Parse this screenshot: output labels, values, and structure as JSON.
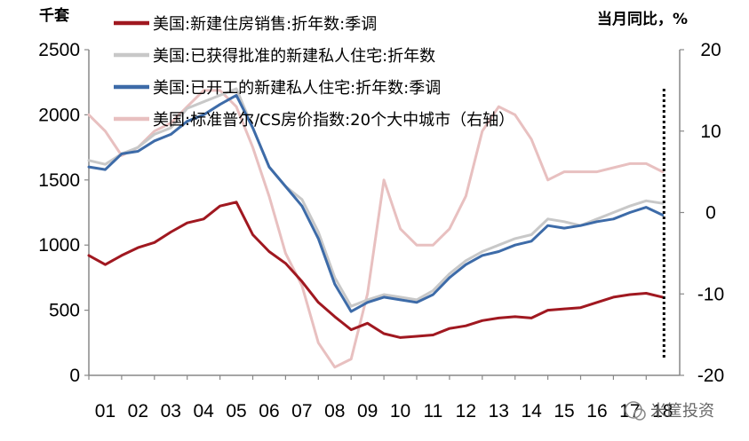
{
  "chart_data": {
    "type": "line",
    "left_unit": "千套",
    "right_unit": "当月同比，%",
    "x_ticks": [
      "01",
      "02",
      "03",
      "04",
      "05",
      "06",
      "07",
      "08",
      "09",
      "10",
      "11",
      "12",
      "13",
      "14",
      "15",
      "16",
      "17",
      "18"
    ],
    "left_axis": {
      "ylim": [
        0,
        2500
      ],
      "ticks": [
        "0",
        "500",
        "1000",
        "1500",
        "2000",
        "2500"
      ]
    },
    "right_axis": {
      "ylim": [
        -20,
        20
      ],
      "ticks": [
        "-20",
        "-10",
        "0",
        "10",
        "20"
      ]
    },
    "grid": false,
    "legend_position": "top-left",
    "x_values": [
      2001,
      2001.5,
      2002,
      2002.5,
      2003,
      2003.5,
      2004,
      2004.5,
      2005,
      2005.5,
      2006,
      2006.5,
      2007,
      2007.5,
      2008,
      2008.5,
      2009,
      2009.5,
      2010,
      2010.5,
      2011,
      2011.5,
      2012,
      2012.5,
      2013,
      2013.5,
      2014,
      2014.5,
      2015,
      2015.5,
      2016,
      2016.5,
      2017,
      2017.5,
      2018,
      2018.5
    ],
    "series": [
      {
        "name": "美国:新建住房销售:折年数:季调",
        "axis": "left",
        "color": "#A01820",
        "width": 3,
        "values": [
          920,
          850,
          920,
          980,
          1020,
          1100,
          1170,
          1200,
          1300,
          1330,
          1080,
          950,
          860,
          720,
          560,
          450,
          350,
          400,
          320,
          290,
          300,
          310,
          360,
          380,
          420,
          440,
          450,
          440,
          500,
          510,
          520,
          560,
          600,
          620,
          630,
          600
        ]
      },
      {
        "name": "美国:已获得批准的新建私人住宅:折年数",
        "axis": "left",
        "color": "#C8C8C8",
        "width": 3,
        "values": [
          1650,
          1620,
          1700,
          1750,
          1850,
          1900,
          2050,
          2100,
          2150,
          2200,
          1900,
          1600,
          1450,
          1350,
          1100,
          750,
          530,
          580,
          620,
          600,
          580,
          650,
          780,
          880,
          950,
          1000,
          1050,
          1080,
          1200,
          1180,
          1150,
          1200,
          1250,
          1300,
          1340,
          1320
        ]
      },
      {
        "name": "美国:已开工的新建私人住宅:折年数:季调",
        "axis": "left",
        "color": "#3D6BA8",
        "width": 3,
        "values": [
          1600,
          1580,
          1700,
          1720,
          1800,
          1850,
          1950,
          2000,
          2080,
          2150,
          1900,
          1600,
          1450,
          1300,
          1050,
          700,
          490,
          560,
          600,
          580,
          560,
          620,
          750,
          850,
          920,
          950,
          1000,
          1030,
          1150,
          1130,
          1150,
          1180,
          1200,
          1250,
          1290,
          1230
        ]
      },
      {
        "name": "美国:标准普尔/CS房价指数:20个大中城市（右轴）",
        "axis": "right",
        "color": "#E8C0C0",
        "width": 3,
        "values": [
          12,
          10,
          7,
          8,
          10,
          11,
          13,
          15,
          15,
          13,
          8,
          2,
          -5,
          -9,
          -16,
          -19,
          -18,
          -10,
          4,
          -2,
          -4,
          -4,
          -2,
          2,
          10,
          13,
          12,
          9,
          4,
          5,
          5,
          5,
          5.5,
          6,
          6,
          5
        ]
      }
    ],
    "annotation": {
      "type": "vertical-dotted-line",
      "x": 2018
    }
  },
  "watermark": "米筐投资",
  "colors": {
    "background": "#FFFFFF",
    "axis": "#888888"
  }
}
